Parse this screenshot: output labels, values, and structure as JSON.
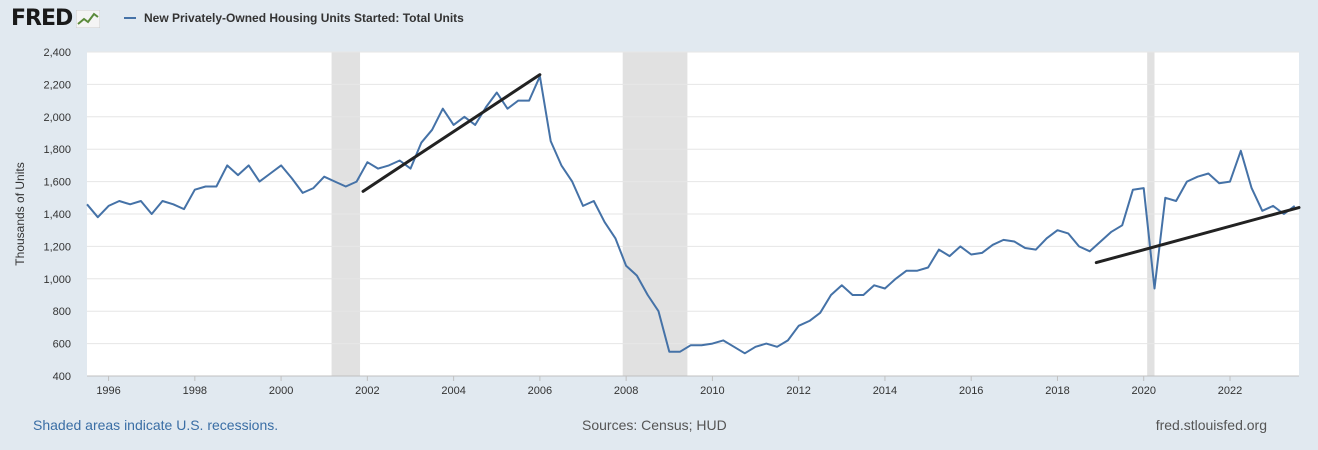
{
  "header": {
    "logo_text": "FRED",
    "series_label": "New Privately-Owned Housing Units Started: Total Units",
    "series_color": "#4572a7"
  },
  "footer": {
    "recession_note": "Shaded areas indicate U.S. recessions.",
    "sources": "Sources: Census; HUD",
    "site": "fred.stlouisfed.org"
  },
  "chart_data": {
    "type": "line",
    "title": "New Privately-Owned Housing Units Started: Total Units",
    "xlabel": "",
    "ylabel": "Thousands of Units",
    "xlim": [
      1995.5,
      2023.6
    ],
    "ylim": [
      400,
      2400
    ],
    "y_ticks": [
      "400",
      "600",
      "800",
      "1,000",
      "1,200",
      "1,400",
      "1,600",
      "1,800",
      "2,000",
      "2,200",
      "2,400"
    ],
    "x_ticks": [
      "1996",
      "1998",
      "2000",
      "2002",
      "2004",
      "2006",
      "2008",
      "2010",
      "2012",
      "2014",
      "2016",
      "2018",
      "2020",
      "2022"
    ],
    "grid": true,
    "recession_shading": [
      [
        2001.17,
        2001.83
      ],
      [
        2007.92,
        2009.42
      ],
      [
        2020.08,
        2020.25
      ]
    ],
    "series": [
      {
        "name": "New Privately-Owned Housing Units Started: Total Units",
        "color": "#4572a7",
        "x": [
          1995.5,
          1995.75,
          1996.0,
          1996.25,
          1996.5,
          1996.75,
          1997.0,
          1997.25,
          1997.5,
          1997.75,
          1998.0,
          1998.25,
          1998.5,
          1998.75,
          1999.0,
          1999.25,
          1999.5,
          1999.75,
          2000.0,
          2000.25,
          2000.5,
          2000.75,
          2001.0,
          2001.25,
          2001.5,
          2001.75,
          2002.0,
          2002.25,
          2002.5,
          2002.75,
          2003.0,
          2003.25,
          2003.5,
          2003.75,
          2004.0,
          2004.25,
          2004.5,
          2004.75,
          2005.0,
          2005.25,
          2005.5,
          2005.75,
          2006.0,
          2006.25,
          2006.5,
          2006.75,
          2007.0,
          2007.25,
          2007.5,
          2007.75,
          2008.0,
          2008.25,
          2008.5,
          2008.75,
          2009.0,
          2009.25,
          2009.5,
          2009.75,
          2010.0,
          2010.25,
          2010.5,
          2010.75,
          2011.0,
          2011.25,
          2011.5,
          2011.75,
          2012.0,
          2012.25,
          2012.5,
          2012.75,
          2013.0,
          2013.25,
          2013.5,
          2013.75,
          2014.0,
          2014.25,
          2014.5,
          2014.75,
          2015.0,
          2015.25,
          2015.5,
          2015.75,
          2016.0,
          2016.25,
          2016.5,
          2016.75,
          2017.0,
          2017.25,
          2017.5,
          2017.75,
          2018.0,
          2018.25,
          2018.5,
          2018.75,
          2019.0,
          2019.25,
          2019.5,
          2019.75,
          2020.0,
          2020.25,
          2020.5,
          2020.75,
          2021.0,
          2021.25,
          2021.5,
          2021.75,
          2022.0,
          2022.25,
          2022.5,
          2022.75,
          2023.0,
          2023.25,
          2023.5
        ],
        "values": [
          1460,
          1380,
          1450,
          1480,
          1460,
          1480,
          1400,
          1480,
          1460,
          1430,
          1550,
          1570,
          1570,
          1700,
          1640,
          1700,
          1600,
          1650,
          1700,
          1620,
          1530,
          1560,
          1630,
          1600,
          1570,
          1600,
          1720,
          1680,
          1700,
          1730,
          1680,
          1840,
          1920,
          2050,
          1950,
          2000,
          1950,
          2060,
          2150,
          2050,
          2100,
          2100,
          2250,
          1850,
          1700,
          1600,
          1450,
          1480,
          1350,
          1250,
          1080,
          1020,
          900,
          800,
          550,
          550,
          590,
          590,
          600,
          620,
          580,
          540,
          580,
          600,
          580,
          620,
          710,
          740,
          790,
          900,
          960,
          900,
          900,
          960,
          940,
          1000,
          1050,
          1050,
          1070,
          1180,
          1140,
          1200,
          1150,
          1160,
          1210,
          1240,
          1230,
          1190,
          1180,
          1250,
          1300,
          1280,
          1200,
          1170,
          1230,
          1290,
          1330,
          1550,
          1560,
          940,
          1500,
          1480,
          1600,
          1630,
          1650,
          1590,
          1600,
          1790,
          1560,
          1420,
          1450,
          1400,
          1450
        ]
      }
    ],
    "annotations": [
      {
        "type": "trend-line",
        "from": [
          2001.9,
          1540
        ],
        "to": [
          2006.0,
          2260
        ]
      },
      {
        "type": "trend-line",
        "from": [
          2018.9,
          1100
        ],
        "to": [
          2023.6,
          1440
        ]
      }
    ]
  }
}
